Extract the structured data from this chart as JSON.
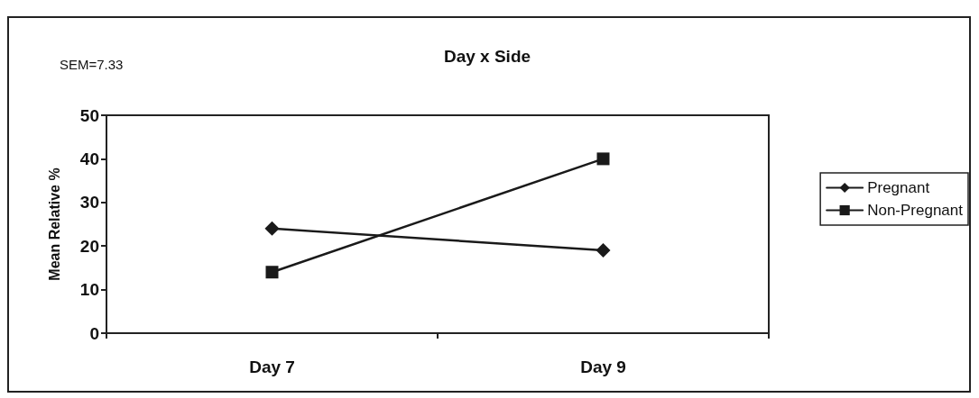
{
  "chart_data": {
    "type": "line",
    "title": "Day x Side",
    "ylabel": "Mean Relative %",
    "annotations": [
      "SEM=7.33"
    ],
    "categories": [
      "Day 7",
      "Day 9"
    ],
    "series": [
      {
        "name": "Pregnant",
        "color": "#1a1a1a",
        "marker": "diamond",
        "values": [
          24,
          19
        ]
      },
      {
        "name": "Non-Pregnant",
        "color": "#1a1a1a",
        "marker": "square",
        "values": [
          14,
          40
        ]
      }
    ],
    "ylim": [
      0,
      50
    ],
    "yticks": [
      0,
      10,
      20,
      30,
      40,
      50
    ],
    "grid": false,
    "legend": "right",
    "line_style": "solid"
  }
}
